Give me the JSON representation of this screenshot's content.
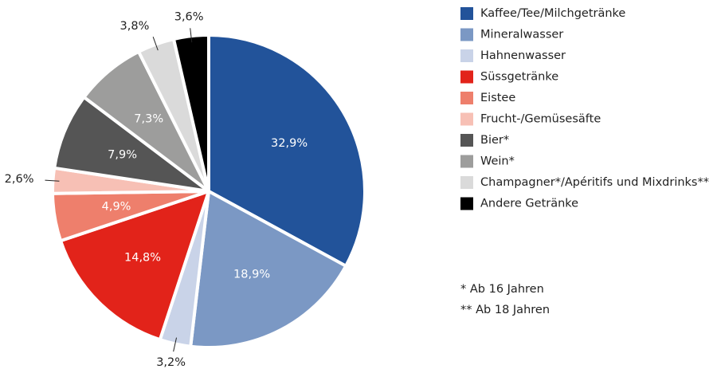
{
  "chart_data": {
    "type": "pie",
    "categories": [
      "Kaffee/Tee/Milchgetränke",
      "Mineralwasser",
      "Hahnenwasser",
      "Süssgetränke",
      "Eistee",
      "Frucht-/Gemüsesäfte",
      "Bier*",
      "Wein*",
      "Champagner*/Apéritifs und Mixdrinks**",
      "Andere Getränke"
    ],
    "values": [
      32.9,
      18.9,
      3.2,
      14.8,
      4.9,
      2.6,
      7.9,
      7.3,
      3.8,
      3.6
    ],
    "value_labels": [
      "32,9%",
      "18,9%",
      "3,2%",
      "14,8%",
      "4,9%",
      "2,6%",
      "7,9%",
      "7,3%",
      "3,8%",
      "3,6%"
    ],
    "colors": [
      "#22539a",
      "#7b98c4",
      "#c9d3e8",
      "#e2231a",
      "#ee7f6c",
      "#f7c0b5",
      "#555555",
      "#9d9d9c",
      "#dadada",
      "#000000"
    ],
    "notes": [
      "* Ab 16 Jahren",
      "** Ab 18 Jahren"
    ]
  }
}
